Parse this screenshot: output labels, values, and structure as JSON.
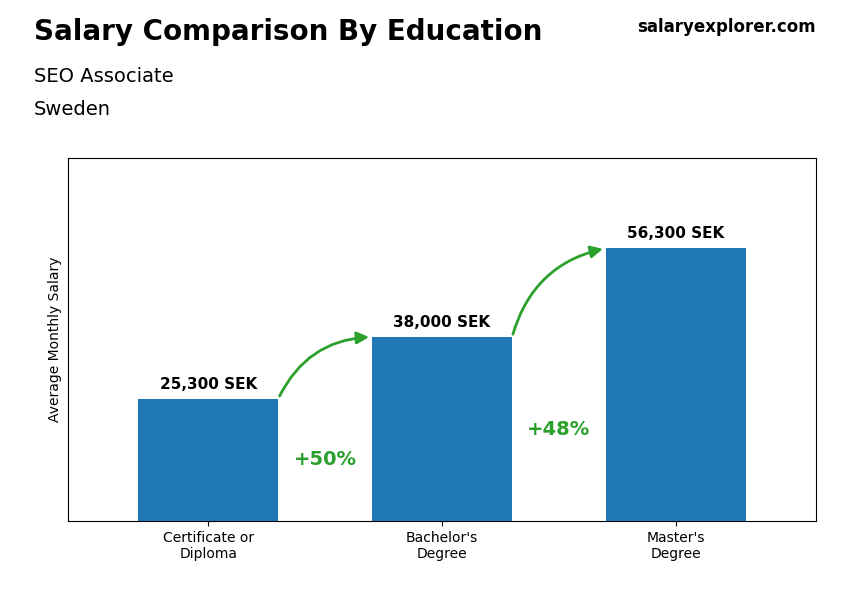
{
  "chart_data": {
    "type": "bar",
    "title": "Salary Comparison By Education",
    "subtitle": [
      "SEO Associate",
      "Sweden"
    ],
    "source": "salaryexplorer.com",
    "ylabel": "Average Monthly Salary",
    "categories": [
      "Certificate or\nDiploma",
      "Bachelor's\nDegree",
      "Master's\nDegree"
    ],
    "values": [
      25300,
      38000,
      56300
    ],
    "value_labels": [
      "25,300 SEK",
      "38,000 SEK",
      "56,300 SEK"
    ],
    "data_labels": true,
    "annotations": [
      "+50%",
      "+48%"
    ],
    "ylim": [
      0,
      75000
    ],
    "tick_labels": "x"
  }
}
